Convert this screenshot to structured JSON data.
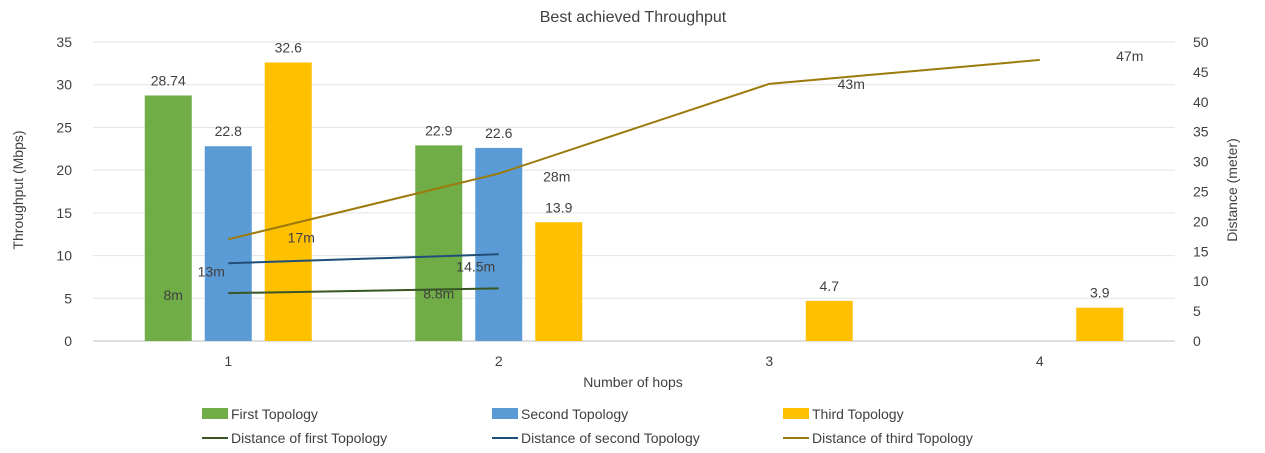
{
  "chart_data": {
    "type": "bar",
    "title": "Best achieved Throughput",
    "xlabel": "Number of hops",
    "ylabel": "Throughput (Mbps)",
    "y2label": "Distance (meter)",
    "categories": [
      "1",
      "2",
      "3",
      "4"
    ],
    "ylim": [
      0,
      35
    ],
    "y2lim": [
      0,
      50
    ],
    "yticks": [
      0,
      5,
      10,
      15,
      20,
      25,
      30,
      35
    ],
    "y2ticks": [
      0,
      5,
      10,
      15,
      20,
      25,
      30,
      35,
      40,
      45,
      50
    ],
    "grid": true,
    "legend_position": "bottom",
    "series": [
      {
        "name": "First Topology",
        "kind": "bar",
        "color": "#70ad47",
        "values": [
          28.74,
          22.9,
          null,
          null
        ],
        "labels": [
          "28.74",
          "22.9",
          "",
          ""
        ]
      },
      {
        "name": "Second Topology",
        "kind": "bar",
        "color": "#5b9bd5",
        "values": [
          22.8,
          22.6,
          null,
          null
        ],
        "labels": [
          "22.8",
          "22.6",
          "",
          ""
        ]
      },
      {
        "name": "Third Topology",
        "kind": "bar",
        "color": "#ffc000",
        "values": [
          32.6,
          13.9,
          4.7,
          3.9
        ],
        "labels": [
          "32.6",
          "13.9",
          "4.7",
          "3.9"
        ]
      },
      {
        "name": "Distance of first Topology",
        "kind": "line",
        "axis": "y2",
        "color": "#375623",
        "values": [
          8,
          8.8,
          null,
          null
        ],
        "labels": [
          "8m",
          "8.8m",
          "",
          ""
        ]
      },
      {
        "name": "Distance of second Topology",
        "kind": "line",
        "axis": "y2",
        "color": "#1f4e79",
        "values": [
          13,
          14.5,
          null,
          null
        ],
        "labels": [
          "13m",
          "14.5m",
          "",
          ""
        ]
      },
      {
        "name": "Distance of third Topology",
        "kind": "line",
        "axis": "y2",
        "color": "#9c7a0b",
        "values": [
          17,
          28,
          43,
          47
        ],
        "labels": [
          "17m",
          "28m",
          "43m",
          "47m"
        ]
      }
    ]
  }
}
